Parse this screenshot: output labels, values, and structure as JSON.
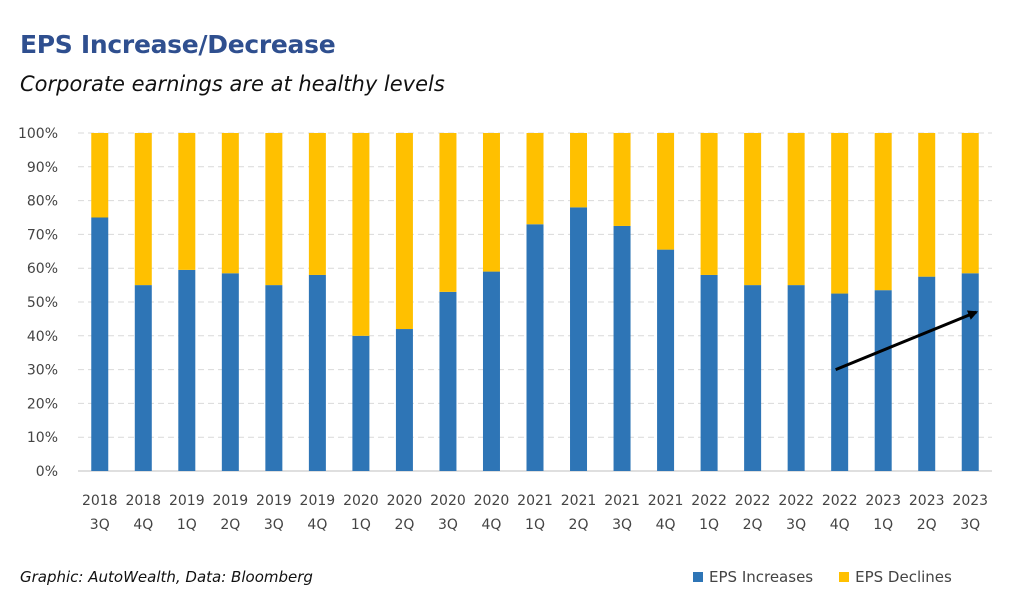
{
  "title": "EPS Increase/Decrease",
  "subtitle": "Corporate earnings are at healthy levels",
  "source": "Graphic: AutoWealth, Data: Bloomberg",
  "colors": {
    "increase": "#2e75b6",
    "decline": "#ffc000",
    "title": "#2f4f8f",
    "arrow": "#000000"
  },
  "chart_data": {
    "type": "bar",
    "stacked": true,
    "categories": [
      [
        "2018",
        "3Q"
      ],
      [
        "2018",
        "4Q"
      ],
      [
        "2019",
        "1Q"
      ],
      [
        "2019",
        "2Q"
      ],
      [
        "2019",
        "3Q"
      ],
      [
        "2019",
        "4Q"
      ],
      [
        "2020",
        "1Q"
      ],
      [
        "2020",
        "2Q"
      ],
      [
        "2020",
        "3Q"
      ],
      [
        "2020",
        "4Q"
      ],
      [
        "2021",
        "1Q"
      ],
      [
        "2021",
        "2Q"
      ],
      [
        "2021",
        "3Q"
      ],
      [
        "2021",
        "4Q"
      ],
      [
        "2022",
        "1Q"
      ],
      [
        "2022",
        "2Q"
      ],
      [
        "2022",
        "3Q"
      ],
      [
        "2022",
        "4Q"
      ],
      [
        "2023",
        "1Q"
      ],
      [
        "2023",
        "2Q"
      ],
      [
        "2023",
        "3Q"
      ]
    ],
    "series": [
      {
        "name": "EPS Increases",
        "values": [
          75,
          55,
          59.5,
          58.5,
          55,
          58,
          40,
          42,
          53,
          59,
          73,
          78,
          72.5,
          65.5,
          58,
          55,
          55,
          52.5,
          53.5,
          57.5,
          58.5
        ]
      },
      {
        "name": "EPS Declines",
        "values": [
          25,
          45,
          40.5,
          41.5,
          45,
          42,
          60,
          58,
          47,
          41,
          27,
          22,
          27.5,
          34.5,
          42,
          45,
          45,
          47.5,
          46.5,
          42.5,
          41.5
        ]
      }
    ],
    "ylim": [
      0,
      100
    ],
    "yticks": [
      "0%",
      "10%",
      "20%",
      "30%",
      "40%",
      "50%",
      "60%",
      "70%",
      "80%",
      "90%",
      "100%"
    ],
    "grid": true,
    "legend_position": "bottom-right",
    "annotations": [
      {
        "type": "arrow",
        "from": {
          "category_index": 17,
          "y": 30
        },
        "to": {
          "category_index": 20,
          "y": 47
        }
      }
    ]
  }
}
